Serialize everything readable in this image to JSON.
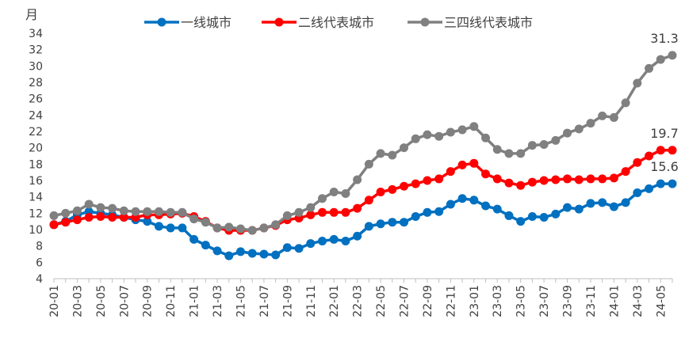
{
  "chart_data": {
    "type": "line",
    "title": "",
    "xlabel": "",
    "ylabel": "月",
    "ylim": [
      4,
      34
    ],
    "yticks": [
      4,
      6,
      8,
      10,
      12,
      14,
      16,
      18,
      20,
      22,
      24,
      26,
      28,
      30,
      32,
      34
    ],
    "legend_position": "top",
    "grid": false,
    "x": [
      "20-01",
      "20-02",
      "20-03",
      "20-04",
      "20-05",
      "20-06",
      "20-07",
      "20-08",
      "20-09",
      "20-10",
      "20-11",
      "20-12",
      "21-01",
      "21-02",
      "21-03",
      "21-04",
      "21-05",
      "21-06",
      "21-07",
      "21-08",
      "21-09",
      "21-10",
      "21-11",
      "21-12",
      "22-01",
      "22-02",
      "22-03",
      "22-04",
      "22-05",
      "22-06",
      "22-07",
      "22-08",
      "22-09",
      "22-10",
      "22-11",
      "22-12",
      "23-01",
      "23-02",
      "23-03",
      "23-04",
      "23-05",
      "23-06",
      "23-07",
      "23-08",
      "23-09",
      "23-10",
      "23-11",
      "23-12",
      "24-01",
      "24-02",
      "24-03",
      "24-04",
      "24-05",
      "24-06"
    ],
    "xtick_labels": [
      "20-01",
      "20-03",
      "20-05",
      "20-07",
      "20-09",
      "20-11",
      "21-01",
      "21-03",
      "21-05",
      "21-07",
      "21-09",
      "21-11",
      "22-01",
      "22-03",
      "22-05",
      "22-07",
      "22-09",
      "22-11",
      "23-01",
      "23-03",
      "23-05",
      "23-07",
      "23-09",
      "23-11",
      "24-01",
      "24-03",
      "24-05"
    ],
    "series": [
      {
        "name": "一线城市",
        "color": "#0070C0",
        "values": [
          10.6,
          11.0,
          11.8,
          12.2,
          12.0,
          11.8,
          11.5,
          11.2,
          11.0,
          10.4,
          10.2,
          10.2,
          8.8,
          8.1,
          7.4,
          6.8,
          7.3,
          7.1,
          7.0,
          6.9,
          7.8,
          7.7,
          8.3,
          8.6,
          8.8,
          8.6,
          9.2,
          10.4,
          10.7,
          10.9,
          10.9,
          11.6,
          12.1,
          12.2,
          13.1,
          13.8,
          13.6,
          12.9,
          12.5,
          11.7,
          11.0,
          11.6,
          11.5,
          11.9,
          12.7,
          12.5,
          13.2,
          13.3,
          12.8,
          13.3,
          14.5,
          15.0,
          15.6,
          15.6
        ],
        "end_label": "15.6"
      },
      {
        "name": "二线代表城市",
        "color": "#FF0000",
        "values": [
          10.6,
          10.9,
          11.2,
          11.5,
          11.6,
          11.5,
          11.5,
          11.5,
          11.8,
          11.8,
          11.9,
          12.0,
          11.6,
          11.0,
          10.2,
          9.9,
          9.9,
          9.9,
          10.2,
          10.5,
          11.2,
          11.4,
          11.8,
          12.1,
          12.1,
          12.1,
          12.6,
          13.6,
          14.6,
          14.9,
          15.3,
          15.6,
          16.0,
          16.2,
          17.1,
          17.9,
          18.1,
          16.8,
          16.2,
          15.7,
          15.4,
          15.8,
          16.0,
          16.1,
          16.2,
          16.1,
          16.2,
          16.2,
          16.3,
          17.1,
          18.2,
          19.0,
          19.7,
          19.7
        ],
        "end_label": "19.7"
      },
      {
        "name": "三四线代表城市",
        "color": "#808080",
        "values": [
          11.7,
          12.0,
          12.3,
          13.1,
          12.7,
          12.6,
          12.3,
          12.2,
          12.2,
          12.2,
          12.1,
          12.1,
          11.3,
          10.9,
          10.2,
          10.3,
          10.1,
          9.9,
          10.2,
          10.6,
          11.7,
          12.1,
          12.7,
          13.8,
          14.6,
          14.4,
          16.1,
          18.0,
          19.3,
          19.1,
          20.0,
          21.1,
          21.6,
          21.4,
          21.9,
          22.2,
          22.6,
          21.2,
          19.8,
          19.3,
          19.3,
          20.3,
          20.4,
          20.9,
          21.8,
          22.3,
          23.0,
          23.9,
          23.7,
          25.5,
          27.9,
          29.7,
          30.8,
          31.3
        ],
        "end_label": "31.3"
      }
    ]
  }
}
